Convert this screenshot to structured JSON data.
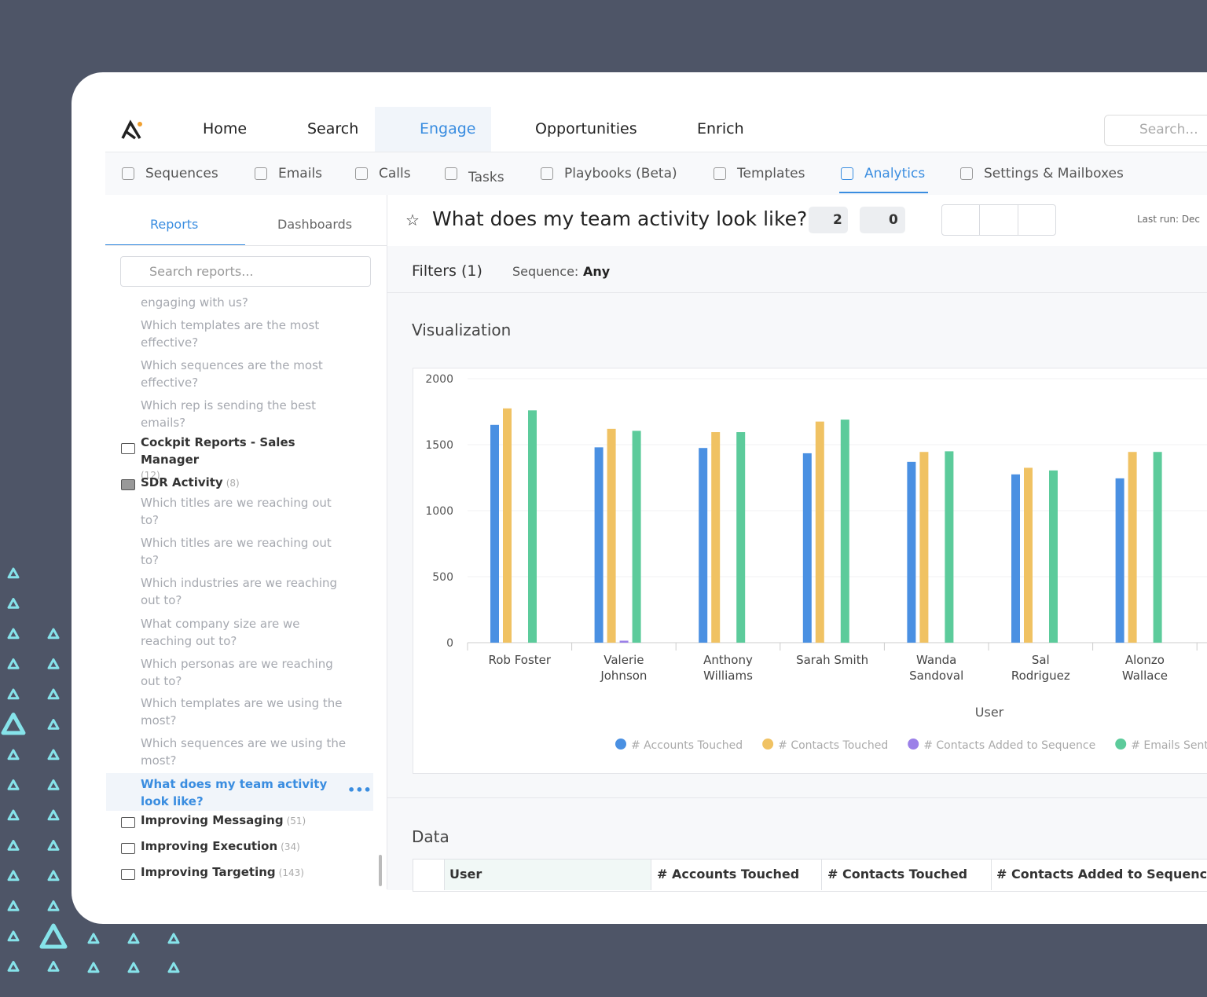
{
  "nav": {
    "items": [
      "Home",
      "Search",
      "Engage",
      "Opportunities",
      "Enrich"
    ],
    "active": 2,
    "search_placeholder": "Search..."
  },
  "subnav": {
    "items": [
      "Sequences",
      "Emails",
      "Calls",
      "Tasks",
      "Playbooks (Beta)",
      "Templates",
      "Analytics",
      "Settings & Mailboxes"
    ],
    "active": 6
  },
  "sidebar": {
    "tabs": [
      "Reports",
      "Dashboards"
    ],
    "search_placeholder": "Search reports...",
    "items": [
      {
        "text": "engaging with us?",
        "kind": "report"
      },
      {
        "text": "Which templates are the most effective?",
        "kind": "report"
      },
      {
        "text": "Which sequences are the most effective?",
        "kind": "report"
      },
      {
        "text": "Which rep is sending the best emails?",
        "kind": "report"
      },
      {
        "text": "Cockpit Reports - Sales Manager",
        "count": "(12)",
        "kind": "folder"
      },
      {
        "text": "SDR Activity",
        "count": "(8)",
        "kind": "open-folder"
      },
      {
        "text": "Which titles are we reaching out to?",
        "kind": "report"
      },
      {
        "text": "Which titles are we reaching out to?",
        "kind": "report"
      },
      {
        "text": "Which industries are we reaching out to?",
        "kind": "report"
      },
      {
        "text": "What company size are we reaching out to?",
        "kind": "report"
      },
      {
        "text": "Which personas are we reaching out to?",
        "kind": "report"
      },
      {
        "text": "Which templates are we using the most?",
        "kind": "report"
      },
      {
        "text": "Which sequences are we using the most?",
        "kind": "report"
      },
      {
        "text": "What does my team activity look like?",
        "kind": "active"
      },
      {
        "text": "Improving Messaging",
        "count": "(51)",
        "kind": "folder"
      },
      {
        "text": "Improving Execution",
        "count": "(34)",
        "kind": "folder"
      },
      {
        "text": "Improving Targeting",
        "count": "(143)",
        "kind": "folder"
      }
    ]
  },
  "report": {
    "title": "What does my team activity look like?",
    "badges": [
      "2",
      "0"
    ],
    "last_run": "Last run: Dec"
  },
  "filters": {
    "label": "Filters (1)",
    "key": "Sequence:",
    "value": "Any"
  },
  "visualization_title": "Visualization",
  "chart_data": {
    "type": "bar",
    "categories": [
      "Rob Foster",
      "Valerie Johnson",
      "Anthony Williams",
      "Sarah Smith",
      "Wanda Sandoval",
      "Sal Rodriguez",
      "Alonzo Wallace"
    ],
    "series": [
      {
        "name": "# Accounts Touched",
        "color": "#4a90e2",
        "values": [
          1650,
          1480,
          1475,
          1435,
          1370,
          1275,
          1245
        ]
      },
      {
        "name": "# Contacts Touched",
        "color": "#f0c263",
        "values": [
          1775,
          1620,
          1595,
          1675,
          1445,
          1325,
          1445
        ]
      },
      {
        "name": "# Contacts Added to Sequence",
        "color": "#9b80e8",
        "values": [
          0,
          15,
          0,
          0,
          0,
          0,
          0
        ]
      },
      {
        "name": "# Emails Sent",
        "color": "#5ccb9b",
        "values": [
          1760,
          1605,
          1595,
          1690,
          1450,
          1305,
          1445
        ]
      }
    ],
    "ylim": [
      0,
      2000
    ],
    "yticks": [
      0,
      500,
      1000,
      1500,
      2000
    ],
    "grid": true,
    "x_label": "User"
  },
  "data_section": {
    "title": "Data",
    "columns": [
      "User",
      "# Accounts Touched",
      "# Contacts Touched",
      "# Contacts Added to Sequence"
    ]
  }
}
